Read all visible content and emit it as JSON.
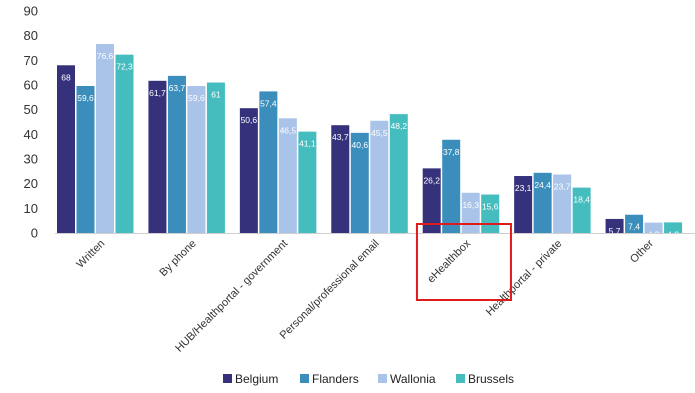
{
  "chart_data": {
    "type": "bar",
    "categories": [
      "Written",
      "By phone",
      "HUB/Healthportal - government",
      "Personal/professional email",
      "eHealthbox",
      "Healthportal - private",
      "Other"
    ],
    "series": [
      {
        "name": "Belgium",
        "color": "#35327b",
        "values": [
          68,
          61.7,
          50.6,
          43.7,
          26.2,
          23.1,
          5.7
        ],
        "labels": [
          "68",
          "61,7",
          "50,6",
          "43,7",
          "26,2",
          "23,1",
          "5,7"
        ]
      },
      {
        "name": "Flanders",
        "color": "#3b8dbb",
        "values": [
          59.6,
          63.7,
          57.4,
          40.6,
          37.8,
          24.4,
          7.4
        ],
        "labels": [
          "59,6",
          "63,7",
          "57,4",
          "40,6",
          "37,8",
          "24,4",
          "7,4"
        ]
      },
      {
        "name": "Wallonia",
        "color": "#a9c3e9",
        "values": [
          76.6,
          59.6,
          46.5,
          45.5,
          16.3,
          23.7,
          4.2
        ],
        "labels": [
          "76,6",
          "59,6",
          "46,5",
          "45,5",
          "16,3",
          "23,7",
          "4,2"
        ]
      },
      {
        "name": "Brussels",
        "color": "#45bdbf",
        "values": [
          72.3,
          61,
          41.1,
          48.2,
          15.6,
          18.4,
          4.3
        ],
        "labels": [
          "72,3",
          "61",
          "41,1",
          "48,2",
          "15,6",
          "18,4",
          "4,3"
        ]
      }
    ],
    "yticks": [
      "0",
      "10",
      "20",
      "30",
      "40",
      "50",
      "60",
      "70",
      "80",
      "90"
    ],
    "ylim": [
      0,
      90
    ],
    "grid": false,
    "legend_position": "bottom",
    "highlight": {
      "category": "eHealthbox",
      "color": "#e01b1b"
    }
  }
}
